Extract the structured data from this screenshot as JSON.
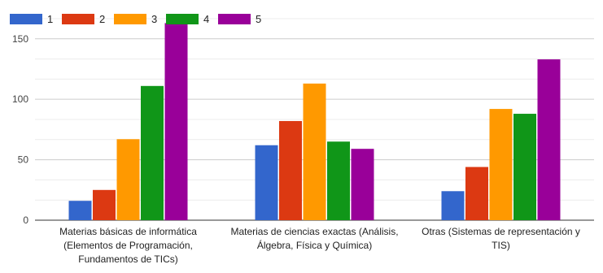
{
  "chart_data": {
    "type": "bar",
    "title": "",
    "xlabel": "",
    "ylabel": "",
    "ylim": [
      0,
      170
    ],
    "yticks": [
      0,
      50,
      100,
      150
    ],
    "grid": true,
    "legend_position": "top-left",
    "categories": [
      [
        "Materias básicas de informática",
        "(Elementos de Programación,",
        "Fundamentos de TICs)"
      ],
      [
        "Materias de ciencias exactas (Análisis,",
        "Álgebra, Física y Química)"
      ],
      [
        "Otras (Sistemas de representación y",
        "TIS)"
      ]
    ],
    "series": [
      {
        "name": "1",
        "color": "#3366cc",
        "values": [
          16,
          62,
          24
        ]
      },
      {
        "name": "2",
        "color": "#dc3912",
        "values": [
          25,
          82,
          44
        ]
      },
      {
        "name": "3",
        "color": "#ff9900",
        "values": [
          67,
          113,
          92
        ]
      },
      {
        "name": "4",
        "color": "#109618",
        "values": [
          111,
          65,
          88
        ]
      },
      {
        "name": "5",
        "color": "#990099",
        "values": [
          163,
          59,
          133
        ]
      }
    ]
  }
}
